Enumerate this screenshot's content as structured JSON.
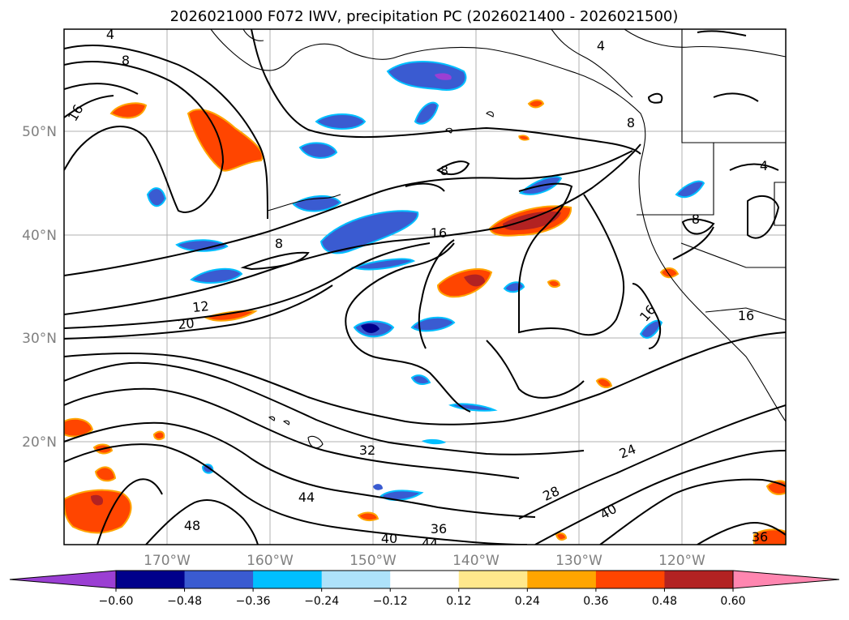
{
  "title": "2026021000 F072 IWV, precipitation PC (2026021400 - 2026021500)",
  "lat_labels": [
    "50°N",
    "40°N",
    "30°N",
    "20°N"
  ],
  "lon_labels": [
    "170°W",
    "160°W",
    "150°W",
    "140°W",
    "130°W",
    "120°W"
  ],
  "contour_labels": [
    "4",
    "8",
    "16",
    "12",
    "20",
    "8",
    "8",
    "16",
    "16",
    "8",
    "4",
    "4",
    "8",
    "32",
    "24",
    "28",
    "44",
    "40",
    "36",
    "40",
    "48",
    "44",
    "36",
    "16"
  ],
  "colorbar": {
    "ticks": [
      "−0.60",
      "−0.48",
      "−0.36",
      "−0.24",
      "−0.12",
      "0.12",
      "0.24",
      "0.36",
      "0.48",
      "0.60"
    ],
    "colors": [
      "#9b3fd3",
      "#00008b",
      "#3a5bd1",
      "#00bfff",
      "#aee2fa",
      "#ffffff",
      "#ffe88c",
      "#ffa500",
      "#ff4500",
      "#b22222",
      "#ff86b0"
    ]
  },
  "colors": {
    "neg_strong": "#3a5bd1",
    "neg_light": "#00bfff",
    "neg_darkest": "#00008b",
    "pos_mid": "#ff4500",
    "pos_light": "#ffa500",
    "pos_dark": "#b22222"
  }
}
